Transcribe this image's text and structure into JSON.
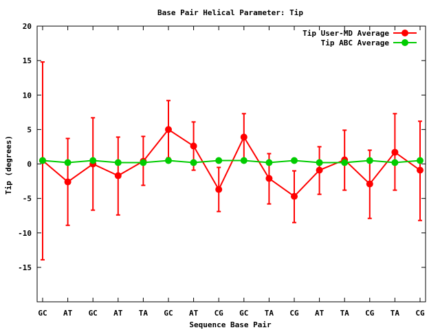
{
  "chart_data": {
    "type": "line",
    "title": "Base Pair Helical Parameter: Tip",
    "xlabel": "Sequence Base Pair",
    "ylabel": "Tip (degrees)",
    "categories": [
      "GC",
      "AT",
      "GC",
      "AT",
      "TA",
      "GC",
      "AT",
      "CG",
      "GC",
      "TA",
      "CG",
      "AT",
      "TA",
      "CG",
      "TA",
      "CG"
    ],
    "ylim": [
      -20,
      20
    ],
    "yticks": [
      "20",
      "15",
      "10",
      "5",
      "0",
      "-5",
      "-10",
      "-15"
    ],
    "yticks_values": [
      20,
      15,
      10,
      5,
      0,
      -5,
      -10,
      -15
    ],
    "legend_position": "top-right",
    "grid": false,
    "series": [
      {
        "name": "Tip User-MD Average",
        "color": "#ff0000",
        "values": [
          0.5,
          -2.6,
          0.0,
          -1.7,
          0.4,
          5.0,
          2.6,
          -3.7,
          3.9,
          -2.1,
          -4.7,
          -0.9,
          0.6,
          -2.9,
          1.7,
          -0.9
        ],
        "error_low": [
          -13.9,
          -8.9,
          -6.7,
          -7.4,
          -3.1,
          0.9,
          -0.9,
          -6.9,
          0.6,
          -5.8,
          -8.5,
          -4.4,
          -3.8,
          -7.9,
          -3.8,
          -8.2
        ],
        "error_high": [
          14.8,
          3.7,
          6.7,
          3.9,
          4.0,
          9.2,
          6.1,
          -0.5,
          7.3,
          1.5,
          -1.0,
          2.5,
          4.9,
          2.0,
          7.3,
          6.2
        ]
      },
      {
        "name": "Tip ABC Average",
        "color": "#00cc00",
        "values": [
          0.5,
          0.2,
          0.5,
          0.2,
          0.2,
          0.5,
          0.2,
          0.5,
          0.5,
          0.2,
          0.5,
          0.2,
          0.2,
          0.5,
          0.2,
          0.5
        ]
      }
    ]
  }
}
